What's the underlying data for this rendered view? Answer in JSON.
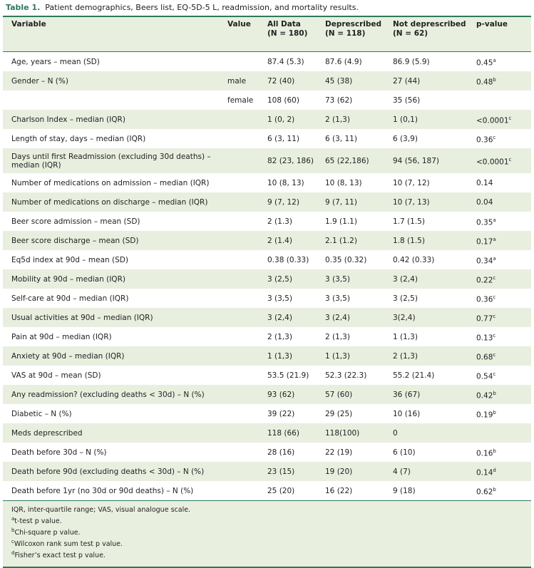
{
  "title": {
    "label": "Table 1.",
    "text": "Patient demographics, Beers list, EQ-5D-5 L, readmission, and mortality results."
  },
  "header": [
    [
      "Variable"
    ],
    [
      "Value"
    ],
    [
      "All Data",
      "(N = 180)"
    ],
    [
      "Deprescribed",
      "(N = 118)"
    ],
    [
      "Not deprescribed",
      "(N = 62)"
    ],
    [
      "p-value"
    ]
  ],
  "rows": [
    [
      "Age, years – mean (SD)",
      null,
      "87.4 (5.3)",
      "87.6 (4.9)",
      "86.9 (5.9)",
      "0.45",
      "a"
    ],
    [
      "Gender – N (%)",
      "male",
      "72 (40)",
      "45 (38)",
      "27 (44)",
      "0.48",
      "b"
    ],
    [
      null,
      "female",
      "108 (60)",
      "73 (62)",
      "35 (56)",
      null,
      null
    ],
    [
      "Charlson Index – median (IQR)",
      null,
      "1 (0, 2)",
      "2 (1,3)",
      "1 (0,1)",
      "<0.0001",
      "c"
    ],
    [
      "Length of stay, days – median (IQR)",
      null,
      "6 (3, 11)",
      "6 (3, 11)",
      "6 (3,9)",
      "0.36",
      "c"
    ],
    [
      "Days until first Readmission (excluding 30d deaths) – median (IQR)",
      null,
      "82 (23, 186)",
      "65 (22,186)",
      "94 (56, 187)",
      "<0.0001",
      "c"
    ],
    [
      "Number of medications on admission – median (IQR)",
      null,
      "10 (8, 13)",
      "10 (8, 13)",
      "10 (7, 12)",
      "0.14",
      null
    ],
    [
      "Number of medications on discharge – median (IQR)",
      null,
      "9 (7, 12)",
      "9 (7, 11)",
      "10 (7, 13)",
      "0.04",
      null
    ],
    [
      "Beer score admission – mean (SD)",
      null,
      "2 (1.3)",
      "1.9 (1.1)",
      "1.7 (1.5)",
      "0.35",
      "a"
    ],
    [
      "Beer score discharge – mean (SD)",
      null,
      "2 (1.4)",
      "2.1 (1.2)",
      "1.8 (1.5)",
      "0.17",
      "a"
    ],
    [
      "Eq5d index at 90d – mean (SD)",
      null,
      "0.38 (0.33)",
      "0.35 (0.32)",
      "0.42 (0.33)",
      "0.34",
      "a"
    ],
    [
      "Mobility at 90d – median (IQR)",
      null,
      "3 (2,5)",
      "3 (3,5)",
      "3 (2,4)",
      "0.22",
      "c"
    ],
    [
      "Self-care at 90d – median (IQR)",
      null,
      "3 (3,5)",
      "3 (3,5)",
      "3 (2,5)",
      "0.36",
      "c"
    ],
    [
      "Usual activities at 90d – median (IQR)",
      null,
      "3 (2,4)",
      "3 (2,4)",
      "3(2,4)",
      "0.77",
      "c"
    ],
    [
      "Pain at 90d – median (IQR)",
      null,
      "2 (1,3)",
      "2 (1,3)",
      "1 (1,3)",
      "0.13",
      "c"
    ],
    [
      "Anxiety at 90d – median (IQR)",
      null,
      "1 (1,3)",
      "1 (1,3)",
      "2 (1,3)",
      "0.68",
      "c"
    ],
    [
      "VAS at 90d – mean (SD)",
      null,
      "53.5 (21.9)",
      "52.3 (22.3)",
      "55.2 (21.4)",
      "0.54",
      "c"
    ],
    [
      "Any readmission? (excluding deaths < 30d) – N (%)",
      null,
      "93 (62)",
      "57 (60)",
      "36 (67)",
      "0.42",
      "b"
    ],
    [
      "Diabetic – N (%)",
      null,
      "39 (22)",
      "29 (25)",
      "10 (16)",
      "0.19",
      "b"
    ],
    [
      "Meds deprescribed",
      null,
      "118 (66)",
      "118(100)",
      "0",
      null,
      null
    ],
    [
      "Death before 30d – N (%)",
      null,
      "28 (16)",
      "22 (19)",
      "6 (10)",
      "0.16",
      "b"
    ],
    [
      "Death before 90d (excluding deaths < 30d) – N (%)",
      null,
      "23 (15)",
      "19 (20)",
      "4 (7)",
      "0.14",
      "d"
    ],
    [
      "Death before 1yr (no 30d or 90d deaths) – N (%)",
      null,
      "25 (20)",
      "16 (22)",
      "9 (18)",
      "0.62",
      "b"
    ]
  ],
  "footer": {
    "abbrev": "IQR, inter-quartile range; VAS, visual analogue scale.",
    "notes": [
      [
        "a",
        "t-test p value."
      ],
      [
        "b",
        "Chi-square p value."
      ],
      [
        "c",
        "Wilcoxon rank sum test p value."
      ],
      [
        "d",
        "Fisher’s exact test p value."
      ]
    ]
  }
}
